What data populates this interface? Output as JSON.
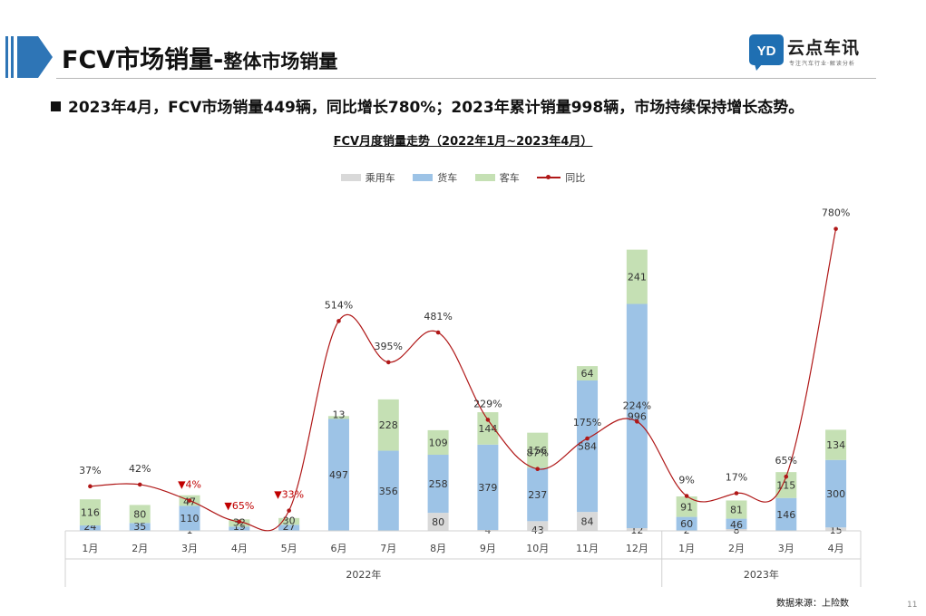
{
  "header": {
    "title_main": "FCV市场销量-",
    "title_sub": "整体市场销量",
    "logo_name": "云点车讯",
    "logo_tagline": "专注汽车行业·解读分析"
  },
  "headline": "2023年4月，FCV市场销量449辆，同比增长780%；2023年累计销量998辆，市场持续保持增长态势。",
  "chart_data": {
    "type": "bar",
    "stacked": true,
    "title": "FCV月度销量走势（2022年1月~2023年4月）",
    "categories": [
      "1月",
      "2月",
      "3月",
      "4月",
      "5月",
      "6月",
      "7月",
      "8月",
      "9月",
      "10月",
      "11月",
      "12月",
      "1月",
      "2月",
      "3月",
      "4月"
    ],
    "year_groups": [
      {
        "label": "2022年",
        "count": 12
      },
      {
        "label": "2023年",
        "count": 4
      }
    ],
    "series": [
      {
        "name": "乘用车",
        "color": "#d9d9d9",
        "values": [
          0,
          0,
          1,
          0,
          0,
          0,
          0,
          80,
          4,
          43,
          84,
          12,
          2,
          8,
          0,
          15
        ]
      },
      {
        "name": "货车",
        "color": "#9dc3e6",
        "values": [
          24,
          35,
          110,
          19,
          27,
          497,
          356,
          258,
          379,
          237,
          584,
          996,
          60,
          46,
          146,
          300
        ]
      },
      {
        "name": "客车",
        "color": "#c5e0b4",
        "values": [
          116,
          80,
          47,
          32,
          30,
          13,
          228,
          109,
          144,
          156,
          64,
          241,
          91,
          81,
          115,
          134
        ]
      }
    ],
    "labels": {
      "乘用车": [
        "",
        "",
        "1",
        "",
        "",
        "",
        "",
        "80",
        "4",
        "43",
        "84",
        "12",
        "2",
        "8",
        "",
        "15"
      ],
      "货车": [
        "24",
        "35",
        "110",
        "19",
        "27",
        "497",
        "356",
        "258",
        "379",
        "237",
        "584",
        "996",
        "60",
        "46",
        "146",
        "300"
      ],
      "客车": [
        "116",
        "80",
        "47",
        "32",
        "30",
        "13",
        "228",
        "109",
        "144",
        "156",
        "64",
        "241",
        "91",
        "81",
        "115",
        "134"
      ]
    },
    "line": {
      "name": "同比",
      "color": "#b01818",
      "values": [
        37,
        42,
        -4,
        -65,
        -33,
        514,
        395,
        481,
        229,
        87,
        175,
        224,
        9,
        17,
        65,
        780
      ],
      "labels": [
        "37%",
        "42%",
        "▼4%",
        "▼65%",
        "▼33%",
        "514%",
        "395%",
        "481%",
        "229%",
        "87%",
        "175%",
        "224%",
        "9%",
        "17%",
        "65%",
        "780%"
      ]
    },
    "legend_position": "top"
  },
  "source": "数据来源：上险数",
  "page_number": "11"
}
